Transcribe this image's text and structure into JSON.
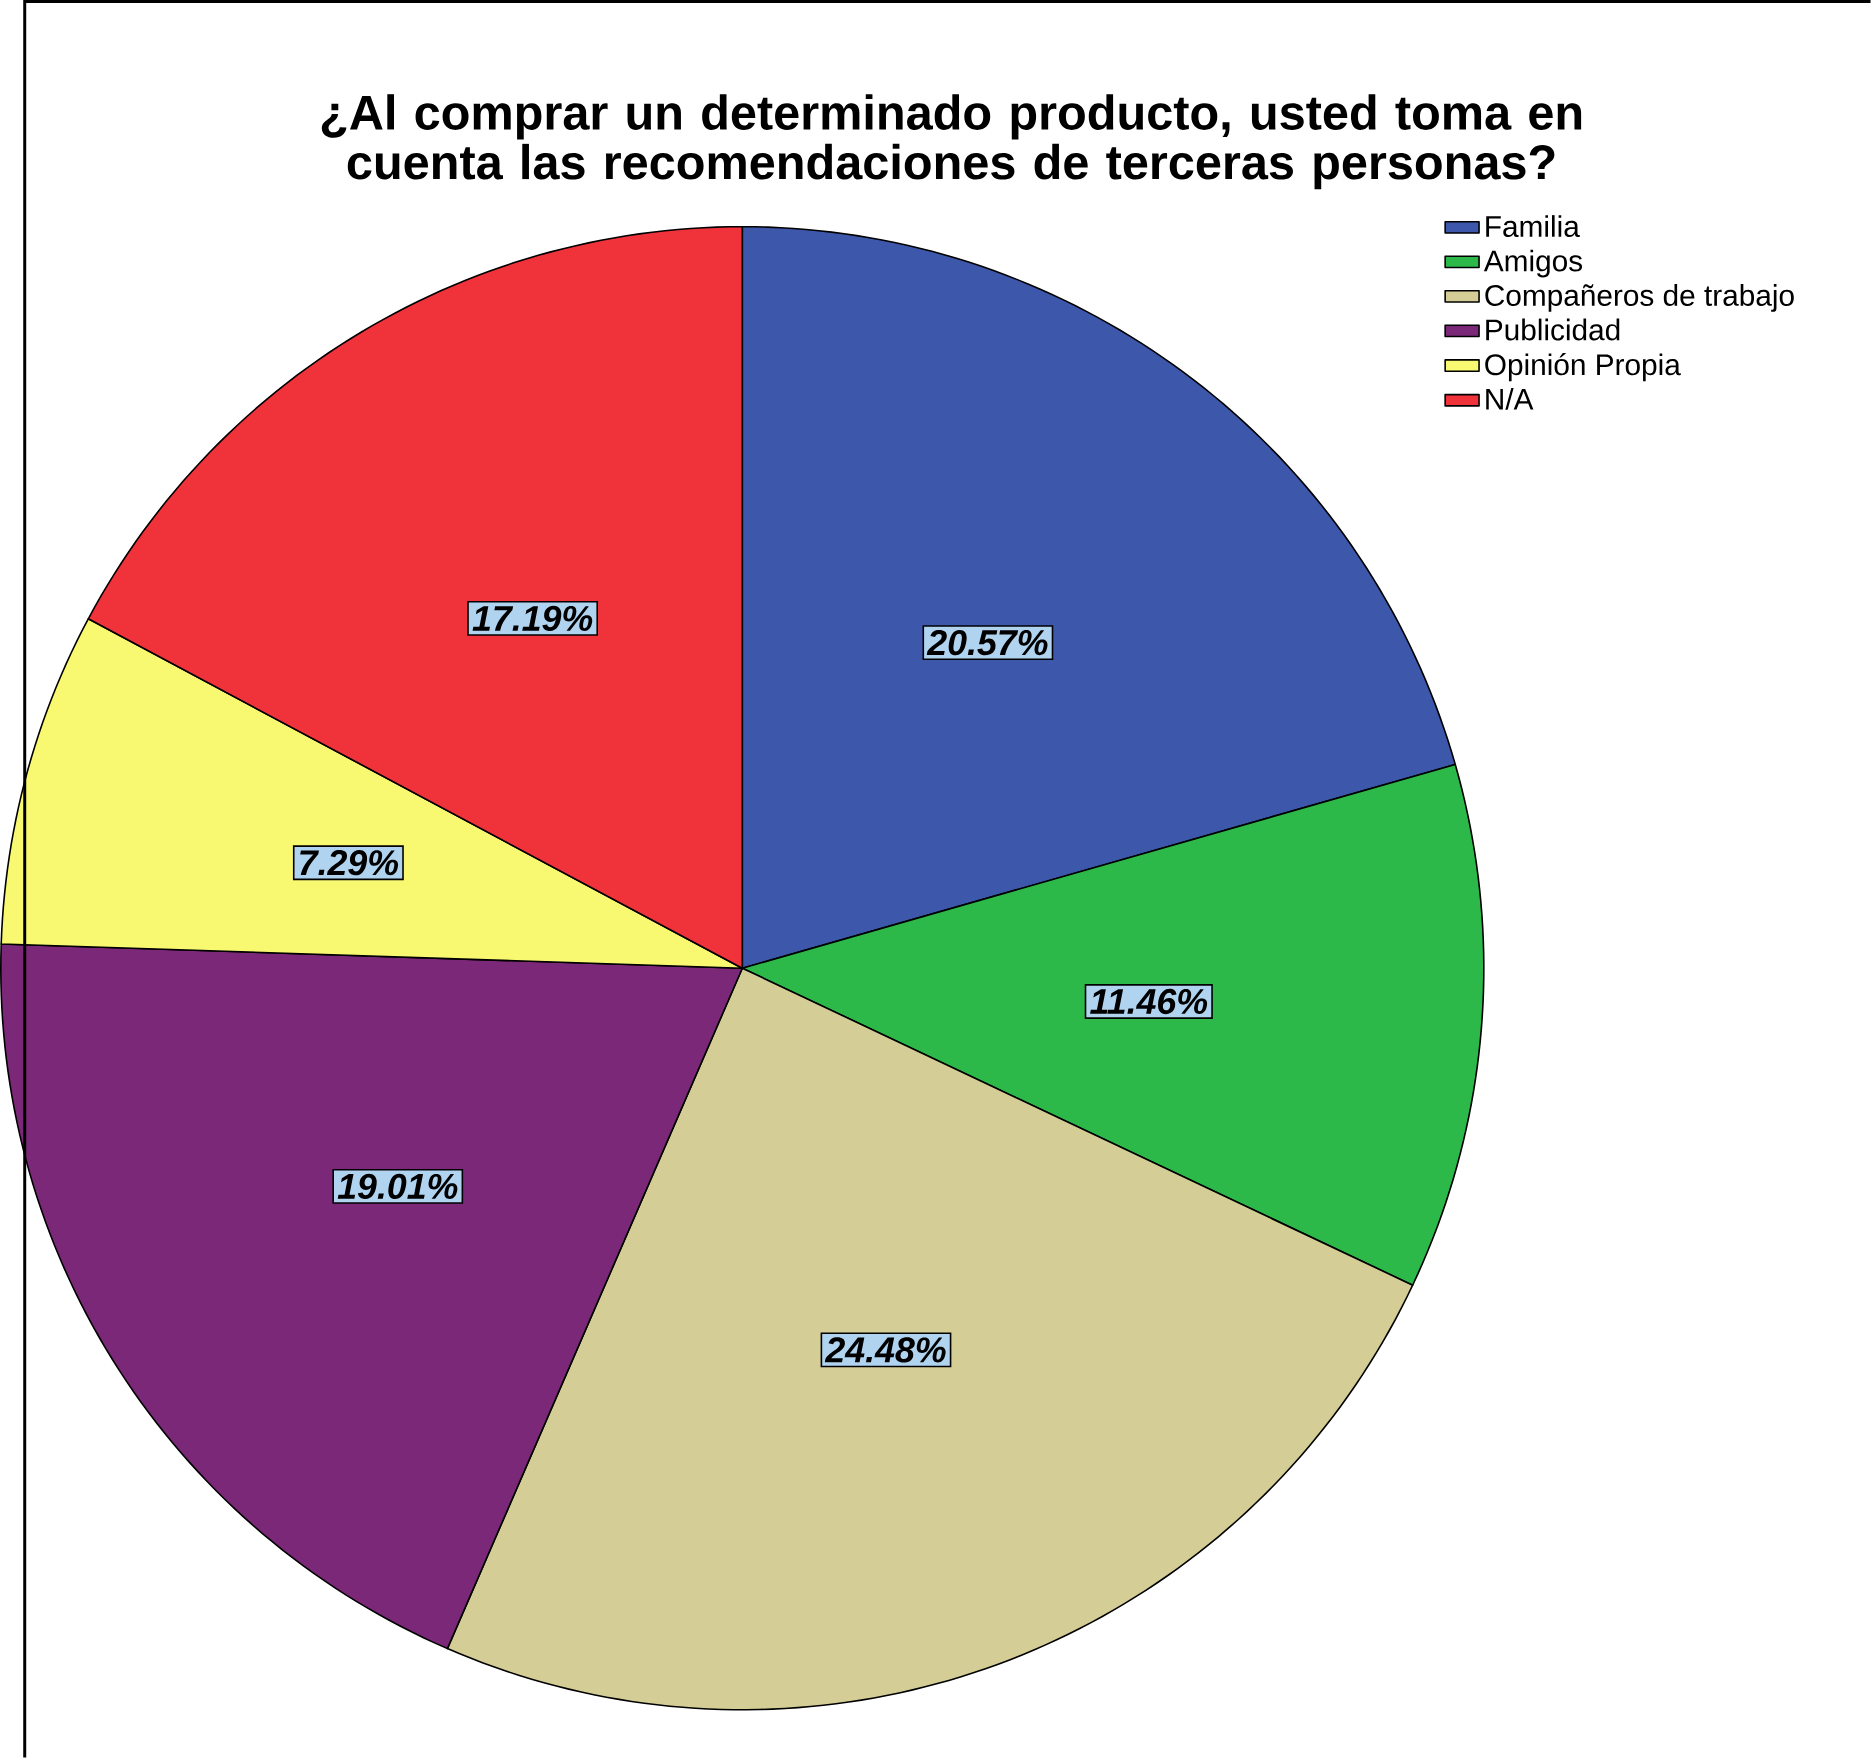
{
  "chart_data": {
    "type": "pie",
    "title": "¿Al comprar un determinado producto, usted toma en cuenta las recomendaciones de terceras personas?",
    "categories": [
      "Familia",
      "Amigos",
      "Compañeros de trabajo",
      "Publicidad",
      "Opinión Propia",
      "N/A"
    ],
    "values": [
      20.57,
      11.46,
      24.48,
      19.01,
      7.29,
      17.19
    ],
    "colors": [
      "#3d57ab",
      "#2db84a",
      "#d4ce96",
      "#7b2878",
      "#f9f871",
      "#f0333a"
    ],
    "value_labels": [
      "20.57%",
      "11.46%",
      "24.48%",
      "19.01%",
      "7.29%",
      "17.19%"
    ],
    "legend": "top right"
  }
}
